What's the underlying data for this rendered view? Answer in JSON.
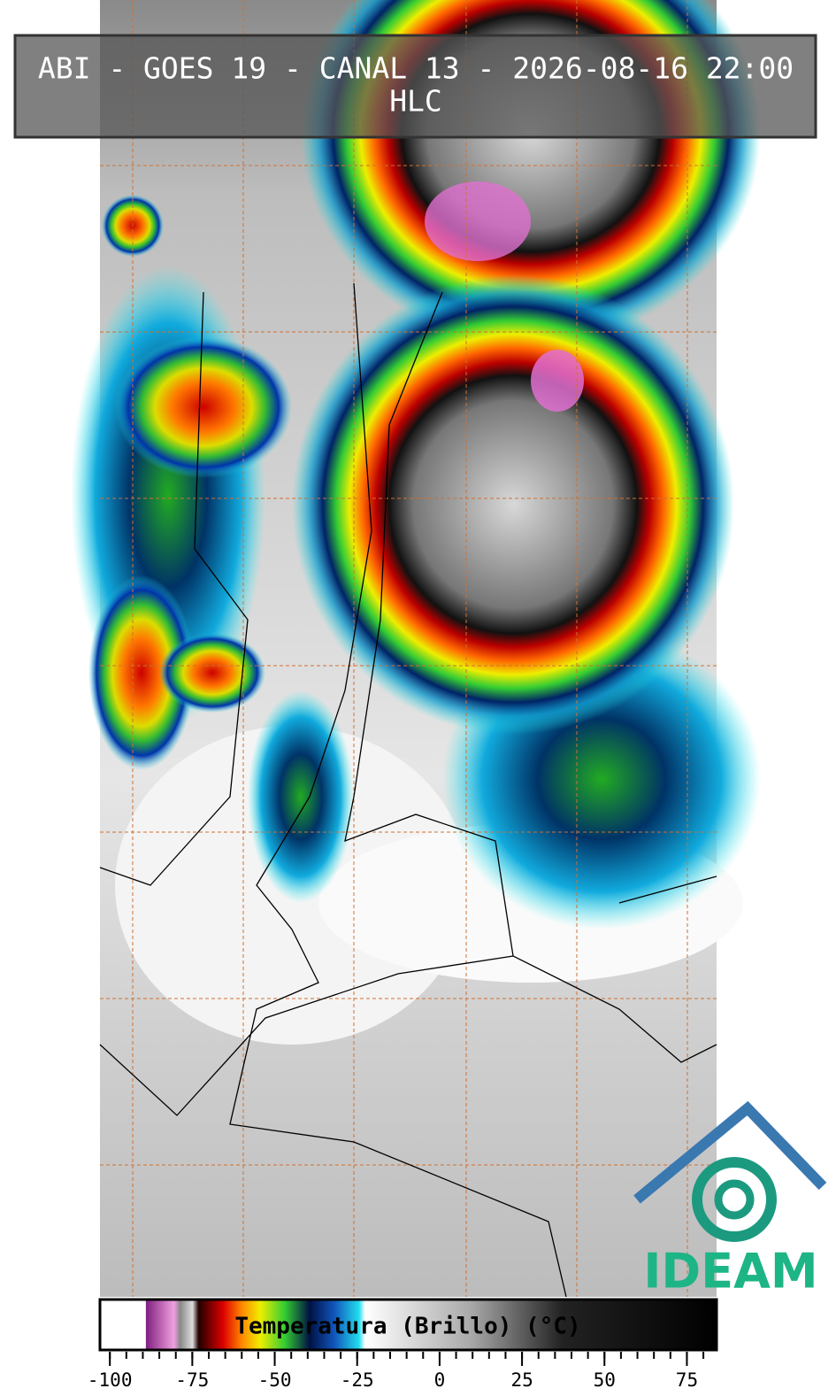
{
  "header": {
    "title": "ABI - GOES 19 - CANAL 13 - 2026-08-16 22:00",
    "subtitle": "HLC"
  },
  "colorbar": {
    "label": "Temperatura (Brillo) (°C)",
    "lim": [
      -103,
      84
    ],
    "ticks": [
      -100,
      -75,
      -50,
      -25,
      0,
      25,
      50,
      75
    ],
    "minor_tick_step": 5
  },
  "logo": {
    "text": "IDEAM"
  }
}
